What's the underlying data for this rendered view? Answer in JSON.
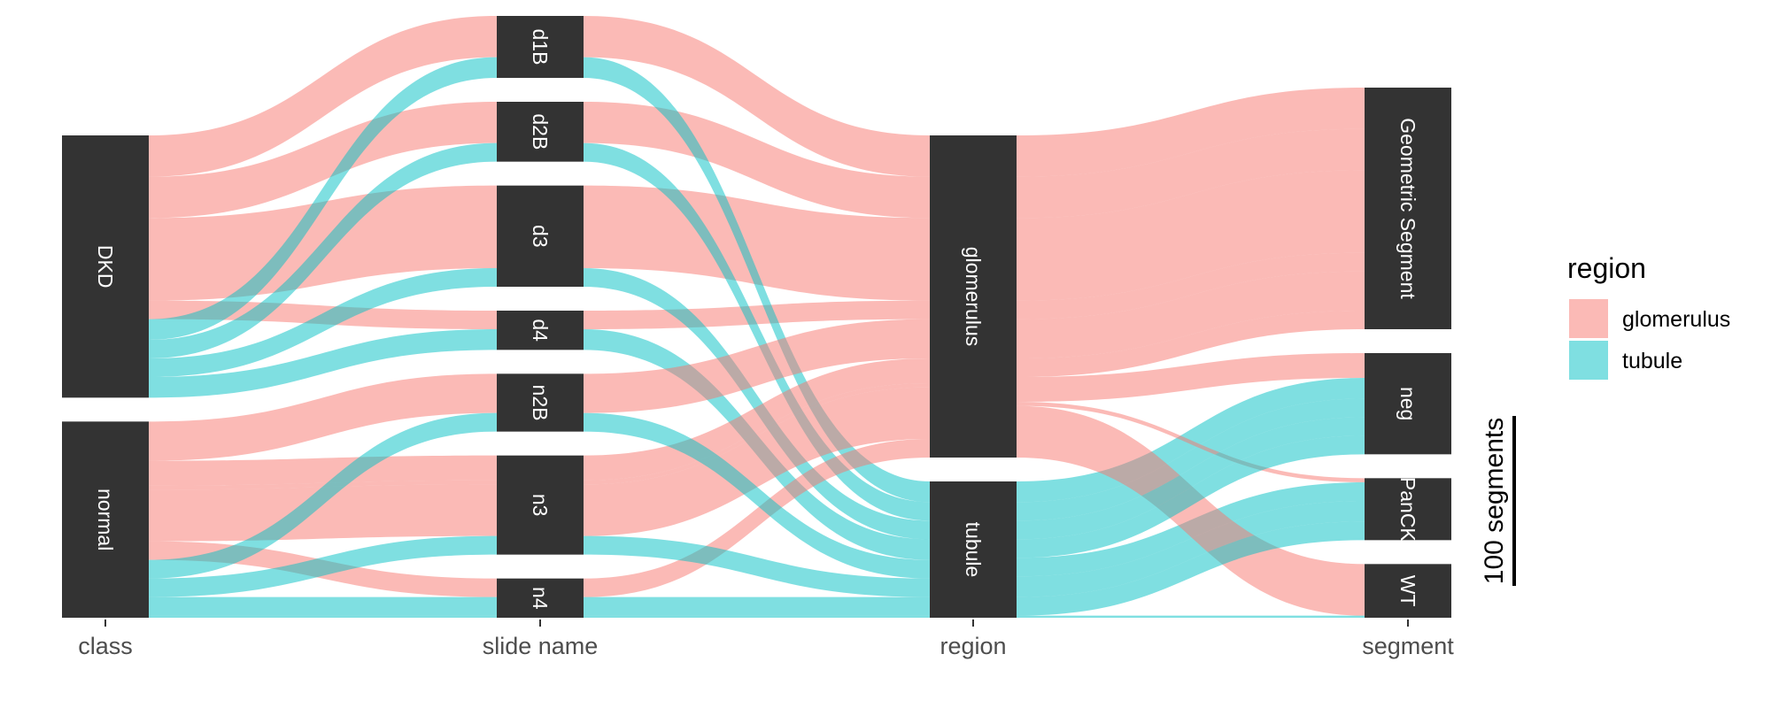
{
  "chart_data": {
    "type": "alluvial",
    "axes": [
      "class",
      "slide name",
      "region",
      "segment"
    ],
    "strata": {
      "class": [
        "DKD",
        "normal"
      ],
      "slide name": [
        "d1B",
        "d2B",
        "d3",
        "d4",
        "n2B",
        "n3",
        "n4"
      ],
      "region": [
        "glomerulus",
        "tubule"
      ],
      "segment": [
        "Geometric Segment",
        "neg",
        "PanCK",
        "WT"
      ]
    },
    "fill_variable": "region",
    "colors": {
      "glomerulus": "#F8766D",
      "tubule": "#00BFC4"
    },
    "legend": {
      "title": "region",
      "entries": [
        "glomerulus",
        "tubule"
      ],
      "position": "right"
    },
    "scale_bar_label": "100 segments",
    "flows": [
      {
        "class": "DKD",
        "slide": "d1B",
        "region": "glomerulus",
        "segment": "Geometric Segment",
        "value": 20
      },
      {
        "class": "DKD",
        "slide": "d2B",
        "region": "glomerulus",
        "segment": "Geometric Segment",
        "value": 20
      },
      {
        "class": "DKD",
        "slide": "d3",
        "region": "glomerulus",
        "segment": "Geometric Segment",
        "value": 40
      },
      {
        "class": "DKD",
        "slide": "d4",
        "region": "glomerulus",
        "segment": "Geometric Segment",
        "value": 9
      },
      {
        "class": "DKD",
        "slide": "d1B",
        "region": "tubule",
        "segment": "neg",
        "value": 10
      },
      {
        "class": "DKD",
        "slide": "d2B",
        "region": "tubule",
        "segment": "neg",
        "value": 9
      },
      {
        "class": "DKD",
        "slide": "d3",
        "region": "tubule",
        "segment": "PanCK",
        "value": 9
      },
      {
        "class": "DKD",
        "slide": "d4",
        "region": "tubule",
        "segment": "PanCK",
        "value": 10
      },
      {
        "class": "normal",
        "slide": "n2B",
        "region": "glomerulus",
        "segment": "Geometric Segment",
        "value": 19
      },
      {
        "class": "normal",
        "slide": "n3",
        "region": "glomerulus",
        "segment": "neg",
        "value": 12
      },
      {
        "class": "normal",
        "slide": "n3",
        "region": "glomerulus",
        "segment": "PanCK",
        "value": 2
      },
      {
        "class": "normal",
        "slide": "n3",
        "region": "glomerulus",
        "segment": "WT",
        "value": 25
      },
      {
        "class": "normal",
        "slide": "n4",
        "region": "glomerulus",
        "segment": "Geometric Segment",
        "value": 9
      },
      {
        "class": "normal",
        "slide": "n2B",
        "region": "tubule",
        "segment": "neg",
        "value": 9
      },
      {
        "class": "normal",
        "slide": "n3",
        "region": "tubule",
        "segment": "neg",
        "value": 9
      },
      {
        "class": "normal",
        "slide": "n4",
        "region": "tubule",
        "segment": "PanCK",
        "value": 9
      },
      {
        "class": "normal",
        "slide": "n4",
        "region": "tubule",
        "segment": "WT",
        "value": 1
      }
    ]
  }
}
